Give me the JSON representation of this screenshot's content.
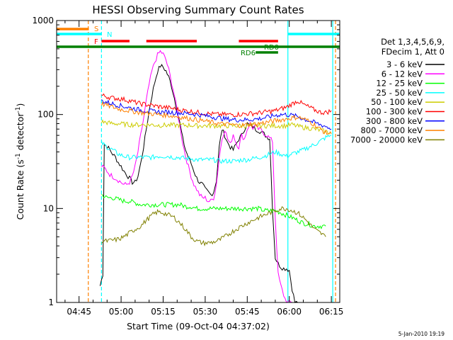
{
  "chart_data": {
    "type": "line",
    "title": "HESSI Observing Summary Count Rates",
    "xlabel": "Start Time (09-Oct-04 04:37:02)",
    "ylabel_main": "Count Rate (s",
    "ylabel_sup1": "-1",
    "ylabel_mid": " detector",
    "ylabel_sup2": "-1",
    "ylabel_end": ")",
    "y_scale": "log",
    "ylim": [
      1,
      1000
    ],
    "y_ticks": [
      {
        "value": 1,
        "label": "1"
      },
      {
        "value": 10,
        "label": "10"
      },
      {
        "value": 100,
        "label": "100"
      },
      {
        "value": 1000,
        "label": "1000"
      }
    ],
    "x_range_minutes": [
      0,
      101
    ],
    "x_ticks": [
      {
        "value": 8,
        "label": "04:45"
      },
      {
        "value": 23,
        "label": "05:00"
      },
      {
        "value": 38,
        "label": "05:15"
      },
      {
        "value": 53,
        "label": "05:30"
      },
      {
        "value": 68,
        "label": "05:45"
      },
      {
        "value": 83,
        "label": "06:00"
      },
      {
        "value": 98,
        "label": "06:15"
      }
    ],
    "legend_header": [
      "Det 1,3,4,5,6,9,",
      "FDecim 1, Att 0"
    ],
    "legend_placement": "right",
    "series": [
      {
        "name": "3 - 6 keV",
        "color": "#000000",
        "x": [
          15.5,
          16.5,
          17,
          18,
          19,
          20,
          21,
          22,
          23,
          24,
          25,
          26,
          27,
          28,
          29,
          30,
          31,
          32,
          33,
          34,
          35,
          36,
          37,
          38,
          39,
          40,
          41,
          42,
          43,
          44,
          45,
          46,
          47,
          48,
          49,
          50,
          51,
          52,
          53,
          54,
          55,
          56,
          57,
          58,
          59,
          60,
          61,
          62,
          63,
          64,
          65,
          66,
          67,
          68,
          69,
          70,
          71,
          72,
          73,
          74,
          75,
          76,
          77,
          78,
          79,
          80,
          81,
          82,
          83,
          84,
          85,
          86
        ],
        "y": [
          1.5,
          2.0,
          48,
          46,
          42,
          38,
          35,
          31,
          28,
          25,
          23,
          21,
          19,
          19,
          22,
          30,
          45,
          70,
          110,
          160,
          220,
          290,
          330,
          320,
          290,
          250,
          200,
          150,
          110,
          80,
          55,
          42,
          35,
          30,
          25,
          21,
          19,
          18,
          16,
          15,
          14,
          15,
          20,
          45,
          70,
          60,
          50,
          45,
          42,
          48,
          55,
          60,
          70,
          80,
          75,
          75,
          70,
          68,
          65,
          62,
          58,
          56,
          10,
          3.0,
          2.6,
          2.4,
          2.3,
          2.3,
          2.2,
          1.4,
          1.0,
          1.0
        ]
      },
      {
        "name": "6 - 12 keV",
        "color": "#ff00ff",
        "x": [
          16,
          17,
          18,
          19,
          20,
          21,
          22,
          23,
          24,
          25,
          26,
          27,
          28,
          29,
          30,
          31,
          32,
          33,
          34,
          35,
          36,
          37,
          38,
          39,
          40,
          41,
          42,
          43,
          44,
          45,
          46,
          47,
          48,
          49,
          50,
          51,
          52,
          53,
          54,
          55,
          56,
          57,
          58,
          59,
          60,
          61,
          62,
          63,
          64,
          65,
          66,
          67,
          68,
          69,
          70,
          71,
          72,
          73,
          74,
          75,
          76,
          77,
          78,
          79,
          80,
          81,
          82,
          83,
          84,
          85
        ],
        "y": [
          28,
          27,
          25,
          23,
          22,
          21,
          20,
          19,
          18,
          18,
          19,
          22,
          28,
          40,
          60,
          90,
          140,
          210,
          290,
          360,
          430,
          470,
          440,
          380,
          300,
          220,
          160,
          110,
          75,
          50,
          36,
          28,
          22,
          18,
          16,
          14,
          13,
          13,
          12,
          12,
          13,
          18,
          35,
          55,
          70,
          55,
          48,
          62,
          50,
          45,
          60,
          55,
          70,
          80,
          72,
          75,
          70,
          68,
          63,
          60,
          56,
          52,
          8,
          2.0,
          1.5,
          1.2,
          1.0,
          1.0,
          1.0,
          1.0
        ]
      },
      {
        "name": "12 - 25 keV",
        "color": "#00ff00",
        "x": [
          16,
          18,
          20,
          22,
          24,
          26,
          28,
          30,
          32,
          34,
          36,
          38,
          40,
          42,
          44,
          46,
          48,
          50,
          52,
          54,
          56,
          58,
          60,
          62,
          64,
          66,
          68,
          70,
          72,
          74,
          76,
          78,
          80,
          82,
          84,
          86,
          88,
          90,
          92,
          94,
          96
        ],
        "y": [
          14,
          13,
          13,
          12.5,
          12,
          12,
          11.5,
          11,
          11,
          11,
          11,
          11,
          11,
          11,
          11,
          10.5,
          10.5,
          10,
          10,
          10,
          10,
          10,
          10,
          10,
          10,
          10,
          10,
          10,
          10,
          9.5,
          9.5,
          9.5,
          9,
          8.5,
          8,
          7.5,
          7,
          6.8,
          6.5,
          6.5,
          6.5
        ]
      },
      {
        "name": "25 - 50 keV",
        "color": "#00ffff",
        "x": [
          16,
          18,
          20,
          22,
          24,
          26,
          28,
          30,
          32,
          34,
          36,
          38,
          40,
          42,
          44,
          46,
          48,
          50,
          52,
          54,
          56,
          58,
          60,
          62,
          64,
          66,
          68,
          70,
          72,
          74,
          76,
          78,
          80,
          82,
          84,
          86,
          88,
          90,
          92,
          94,
          96,
          98
        ],
        "y": [
          50,
          45,
          42,
          38,
          36,
          35,
          35,
          35,
          35,
          35,
          36,
          36,
          36,
          35,
          35,
          34,
          34,
          33,
          33,
          33,
          33,
          32,
          32,
          32,
          32,
          33,
          33,
          34,
          35,
          36,
          38,
          40,
          38,
          36,
          38,
          40,
          42,
          45,
          48,
          52,
          57,
          60
        ]
      },
      {
        "name": "50 - 100 keV",
        "color": "#cccc00",
        "x": [
          16,
          18,
          20,
          22,
          24,
          26,
          28,
          30,
          32,
          34,
          36,
          38,
          40,
          42,
          44,
          46,
          48,
          50,
          52,
          54,
          56,
          58,
          60,
          62,
          64,
          66,
          68,
          70,
          72,
          74,
          76,
          78,
          80,
          82,
          84,
          86,
          88,
          90,
          92,
          94,
          96,
          98
        ],
        "y": [
          84,
          82,
          80,
          80,
          79,
          78,
          78,
          78,
          78,
          78,
          77,
          77,
          77,
          77,
          77,
          77,
          77,
          76,
          76,
          76,
          76,
          76,
          76,
          76,
          76,
          76,
          76,
          76,
          76,
          76,
          76,
          76,
          76,
          76,
          78,
          75,
          73,
          72,
          70,
          68,
          66,
          64
        ]
      },
      {
        "name": "100 - 300 keV",
        "color": "#ff0000",
        "x": [
          16,
          18,
          20,
          22,
          24,
          26,
          28,
          30,
          32,
          34,
          36,
          38,
          40,
          42,
          44,
          46,
          48,
          50,
          52,
          54,
          56,
          58,
          60,
          62,
          64,
          66,
          68,
          70,
          72,
          74,
          76,
          78,
          80,
          82,
          84,
          86,
          88,
          90,
          92,
          94,
          96,
          98
        ],
        "y": [
          160,
          155,
          150,
          148,
          145,
          140,
          135,
          130,
          128,
          125,
          122,
          120,
          118,
          115,
          112,
          110,
          108,
          106,
          104,
          102,
          101,
          100,
          100,
          100,
          100,
          101,
          102,
          103,
          104,
          106,
          108,
          110,
          115,
          120,
          130,
          140,
          128,
          120,
          112,
          106,
          105,
          110
        ]
      },
      {
        "name": "300 - 800 keV",
        "color": "#0000ff",
        "x": [
          16,
          18,
          20,
          22,
          24,
          26,
          28,
          30,
          32,
          34,
          36,
          38,
          40,
          42,
          44,
          46,
          48,
          50,
          52,
          54,
          56,
          58,
          60,
          62,
          64,
          66,
          68,
          70,
          72,
          74,
          76,
          78,
          80,
          82,
          84,
          86,
          88,
          90,
          92,
          94,
          96,
          98
        ],
        "y": [
          140,
          135,
          130,
          126,
          122,
          118,
          115,
          112,
          110,
          108,
          107,
          106,
          106,
          105,
          104,
          103,
          102,
          100,
          98,
          96,
          94,
          92,
          90,
          89,
          88,
          88,
          88,
          89,
          90,
          92,
          95,
          98,
          100,
          100,
          98,
          95,
          90,
          86,
          82,
          78,
          75,
          70
        ]
      },
      {
        "name": "800 - 7000 keV",
        "color": "#ff8000",
        "x": [
          16,
          18,
          20,
          22,
          24,
          26,
          28,
          30,
          32,
          34,
          36,
          38,
          40,
          42,
          44,
          46,
          48,
          50,
          52,
          54,
          56,
          58,
          60,
          62,
          64,
          66,
          68,
          70,
          72,
          74,
          76,
          78,
          80,
          82,
          84,
          86,
          88,
          90,
          92,
          94,
          96,
          98
        ],
        "y": [
          130,
          125,
          120,
          115,
          112,
          110,
          107,
          105,
          103,
          102,
          100,
          99,
          98,
          96,
          94,
          92,
          90,
          88,
          86,
          84,
          82,
          80,
          79,
          78,
          77,
          77,
          78,
          79,
          80,
          82,
          84,
          86,
          88,
          90,
          92,
          94,
          90,
          85,
          78,
          70,
          64,
          62
        ]
      },
      {
        "name": "7000 - 20000 keV",
        "color": "#808000",
        "x": [
          16,
          18,
          20,
          22,
          24,
          26,
          28,
          30,
          32,
          34,
          36,
          38,
          40,
          42,
          44,
          46,
          48,
          50,
          52,
          54,
          56,
          58,
          60,
          62,
          64,
          66,
          68,
          70,
          72,
          74,
          76,
          78,
          80,
          82,
          84,
          86,
          88,
          90,
          92,
          94,
          96
        ],
        "y": [
          4.5,
          4.5,
          4.6,
          4.7,
          5.0,
          5.5,
          6.0,
          6.5,
          7.5,
          8.5,
          9.2,
          9.0,
          8.5,
          8.0,
          7.0,
          6.0,
          5.0,
          4.5,
          4.3,
          4.3,
          4.4,
          4.6,
          5.0,
          5.5,
          6.0,
          6.5,
          7.0,
          7.5,
          8.0,
          8.5,
          9.0,
          9.5,
          10,
          10,
          9.5,
          9.0,
          8.0,
          7.0,
          6.0,
          5.5,
          5.0
        ]
      }
    ],
    "markers": {
      "S": {
        "label": "S",
        "color": "#ff8000",
        "intervals": [
          [
            0,
            11.5
          ]
        ]
      },
      "N": {
        "label": "N",
        "color": "#00ffff",
        "intervals": [
          [
            0,
            16
          ],
          [
            82.5,
            101
          ]
        ]
      },
      "F": {
        "label": "F",
        "color": "#ff0000",
        "intervals": [
          [
            16,
            26
          ],
          [
            32,
            50
          ],
          [
            65,
            79
          ]
        ]
      },
      "RD0": {
        "label": "RD0",
        "color": "#008000",
        "intervals": [
          [
            0,
            101
          ]
        ]
      },
      "RD6": {
        "label": "RD6",
        "color": "#008000",
        "intervals": [
          [
            71,
            79
          ]
        ]
      }
    },
    "vertical_lines": [
      {
        "x": 11.3,
        "color": "#ff8000",
        "style": "dashed"
      },
      {
        "x": 16.0,
        "color": "#00ffff",
        "style": "dashed"
      },
      {
        "x": 82.5,
        "color": "#00ffff",
        "style": "solid"
      },
      {
        "x": 98.5,
        "color": "#00ffff",
        "style": "solid"
      },
      {
        "x": 99.5,
        "color": "#ff8000",
        "style": "dashed"
      }
    ]
  },
  "footer_stamp": "5-Jan-2010 19:19"
}
